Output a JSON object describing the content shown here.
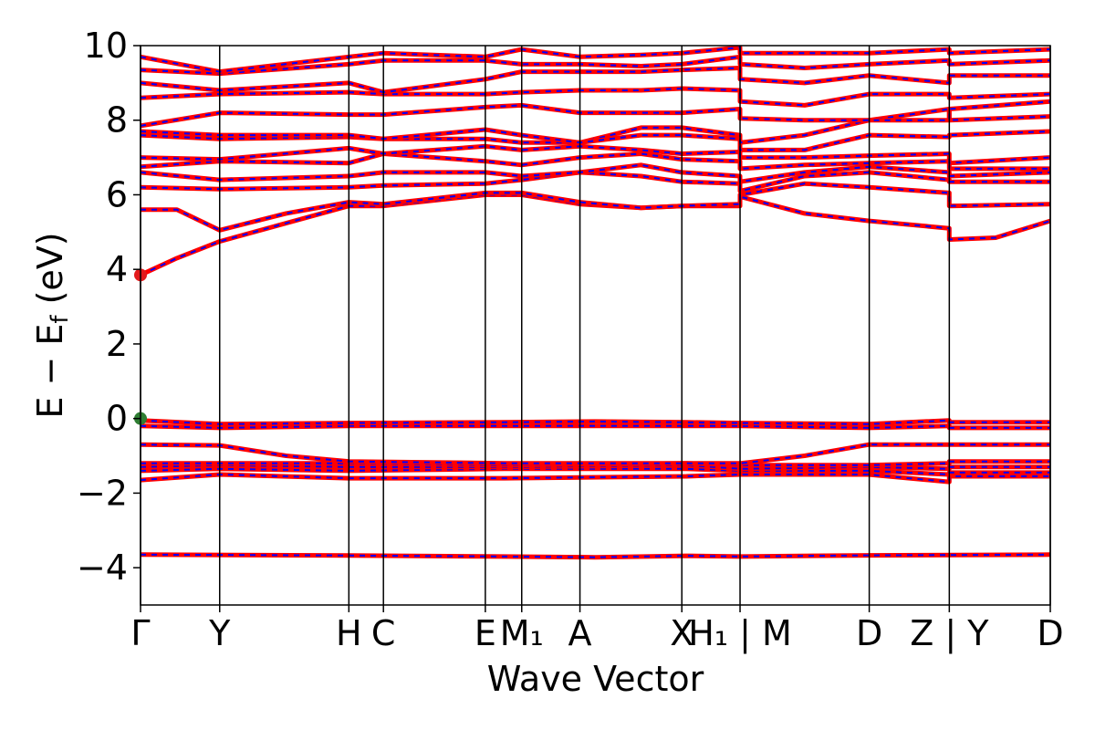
{
  "chart_data": {
    "type": "line",
    "xlabel": "Wave Vector",
    "ylabel": "E − E_f (eV)",
    "ylabel_main": "E − E",
    "ylabel_sub": "f",
    "ylabel_unit": " (eV)",
    "ylim": [
      -5,
      10
    ],
    "yticks": [
      -4,
      -2,
      0,
      2,
      4,
      6,
      8,
      10
    ],
    "ytick_labels": [
      "−4",
      "−2",
      "0",
      "2",
      "4",
      "6",
      "8",
      "10"
    ],
    "xlim": [
      0,
      1
    ],
    "kpoints": [
      {
        "x": 0.0,
        "label": "Γ"
      },
      {
        "x": 0.087,
        "label": "Y"
      },
      {
        "x": 0.229,
        "label": "H"
      },
      {
        "x": 0.267,
        "label": "C"
      },
      {
        "x": 0.379,
        "label": "E"
      },
      {
        "x": 0.419,
        "label": "M₁"
      },
      {
        "x": 0.483,
        "label": "A"
      },
      {
        "x": 0.595,
        "label": "X"
      },
      {
        "x": 0.659,
        "label": "H₁ | M"
      },
      {
        "x": 0.801,
        "label": "D"
      },
      {
        "x": 0.889,
        "label": "Z | Y"
      },
      {
        "x": 1.0,
        "label": "D"
      }
    ],
    "series": [
      {
        "values": [
          [
            0,
            -3.65
          ],
          [
            0.2,
            -3.67
          ],
          [
            0.4,
            -3.7
          ],
          [
            0.5,
            -3.72
          ],
          [
            0.6,
            -3.68
          ],
          [
            0.66,
            -3.7
          ],
          [
            0.8,
            -3.67
          ],
          [
            1,
            -3.65
          ]
        ]
      },
      {
        "values": [
          [
            0,
            -1.65
          ],
          [
            0.087,
            -1.5
          ],
          [
            0.229,
            -1.6
          ],
          [
            0.4,
            -1.6
          ],
          [
            0.6,
            -1.55
          ],
          [
            0.66,
            -1.5
          ],
          [
            0.8,
            -1.5
          ],
          [
            0.889,
            -1.7
          ],
          [
            0.889,
            -1.55
          ],
          [
            1,
            -1.55
          ]
        ]
      },
      {
        "values": [
          [
            0,
            -1.4
          ],
          [
            0.087,
            -1.35
          ],
          [
            0.229,
            -1.4
          ],
          [
            0.4,
            -1.35
          ],
          [
            0.6,
            -1.35
          ],
          [
            0.66,
            -1.4
          ],
          [
            0.8,
            -1.4
          ],
          [
            0.889,
            -1.5
          ],
          [
            0.889,
            -1.45
          ],
          [
            1,
            -1.45
          ]
        ]
      },
      {
        "values": [
          [
            0,
            -1.3
          ],
          [
            0.087,
            -1.25
          ],
          [
            0.229,
            -1.3
          ],
          [
            0.4,
            -1.3
          ],
          [
            0.6,
            -1.25
          ],
          [
            0.66,
            -1.35
          ],
          [
            0.8,
            -1.3
          ],
          [
            0.889,
            -1.35
          ],
          [
            0.889,
            -1.3
          ],
          [
            1,
            -1.3
          ]
        ]
      },
      {
        "values": [
          [
            0,
            -1.2
          ],
          [
            0.087,
            -1.2
          ],
          [
            0.229,
            -1.2
          ],
          [
            0.4,
            -1.25
          ],
          [
            0.6,
            -1.2
          ],
          [
            0.66,
            -1.25
          ],
          [
            0.8,
            -1.25
          ],
          [
            0.889,
            -1.2
          ],
          [
            0.889,
            -1.15
          ],
          [
            1,
            -1.15
          ]
        ]
      },
      {
        "values": [
          [
            0,
            -0.7
          ],
          [
            0.087,
            -0.72
          ],
          [
            0.16,
            -1.0
          ],
          [
            0.229,
            -1.15
          ],
          [
            0.4,
            -1.2
          ],
          [
            0.6,
            -1.2
          ],
          [
            0.66,
            -1.2
          ],
          [
            0.73,
            -1.0
          ],
          [
            0.8,
            -0.7
          ],
          [
            1,
            -0.7
          ]
        ]
      },
      {
        "values": [
          [
            0,
            -0.2
          ],
          [
            0.087,
            -0.25
          ],
          [
            0.229,
            -0.2
          ],
          [
            0.4,
            -0.2
          ],
          [
            0.6,
            -0.2
          ],
          [
            0.66,
            -0.2
          ],
          [
            0.8,
            -0.25
          ],
          [
            0.889,
            -0.2
          ],
          [
            0.889,
            -0.25
          ],
          [
            1,
            -0.25
          ]
        ]
      },
      {
        "values": [
          [
            0,
            -0.05
          ],
          [
            0.087,
            -0.15
          ],
          [
            0.229,
            -0.12
          ],
          [
            0.4,
            -0.1
          ],
          [
            0.5,
            -0.08
          ],
          [
            0.6,
            -0.1
          ],
          [
            0.66,
            -0.12
          ],
          [
            0.8,
            -0.15
          ],
          [
            0.889,
            -0.05
          ],
          [
            0.889,
            -0.1
          ],
          [
            1,
            -0.1
          ]
        ]
      },
      {
        "values": [
          [
            0,
            3.85
          ],
          [
            0.04,
            4.3
          ],
          [
            0.087,
            4.75
          ],
          [
            0.229,
            5.7
          ],
          [
            0.267,
            5.7
          ],
          [
            0.379,
            6.0
          ],
          [
            0.419,
            6.0
          ],
          [
            0.483,
            5.75
          ],
          [
            0.55,
            5.65
          ],
          [
            0.595,
            5.7
          ],
          [
            0.659,
            5.7
          ],
          [
            0.659,
            5.95
          ],
          [
            0.73,
            5.5
          ],
          [
            0.801,
            5.3
          ],
          [
            0.889,
            5.1
          ],
          [
            0.889,
            4.8
          ],
          [
            0.94,
            4.85
          ],
          [
            1,
            5.3
          ]
        ]
      },
      {
        "values": [
          [
            0,
            5.6
          ],
          [
            0.04,
            5.6
          ],
          [
            0.087,
            5.05
          ],
          [
            0.16,
            5.5
          ],
          [
            0.229,
            5.8
          ],
          [
            0.267,
            5.75
          ],
          [
            0.379,
            6.05
          ],
          [
            0.419,
            6.05
          ],
          [
            0.483,
            5.8
          ],
          [
            0.55,
            5.65
          ],
          [
            0.595,
            5.7
          ],
          [
            0.659,
            5.75
          ],
          [
            0.659,
            6.0
          ],
          [
            0.73,
            6.3
          ],
          [
            0.801,
            6.2
          ],
          [
            0.889,
            6.05
          ],
          [
            0.889,
            5.7
          ],
          [
            1,
            5.75
          ]
        ]
      },
      {
        "values": [
          [
            0,
            6.2
          ],
          [
            0.087,
            6.15
          ],
          [
            0.229,
            6.2
          ],
          [
            0.267,
            6.25
          ],
          [
            0.379,
            6.3
          ],
          [
            0.419,
            6.4
          ],
          [
            0.483,
            6.6
          ],
          [
            0.55,
            6.5
          ],
          [
            0.595,
            6.35
          ],
          [
            0.659,
            6.3
          ],
          [
            0.659,
            6.1
          ],
          [
            0.73,
            6.5
          ],
          [
            0.801,
            6.6
          ],
          [
            0.889,
            6.4
          ],
          [
            0.889,
            6.35
          ],
          [
            1,
            6.35
          ]
        ]
      },
      {
        "values": [
          [
            0,
            6.6
          ],
          [
            0.087,
            6.4
          ],
          [
            0.229,
            6.5
          ],
          [
            0.267,
            6.6
          ],
          [
            0.379,
            6.6
          ],
          [
            0.419,
            6.5
          ],
          [
            0.483,
            6.6
          ],
          [
            0.55,
            6.8
          ],
          [
            0.595,
            6.6
          ],
          [
            0.659,
            6.5
          ],
          [
            0.659,
            6.35
          ],
          [
            0.73,
            6.6
          ],
          [
            0.801,
            6.75
          ],
          [
            0.889,
            6.6
          ],
          [
            0.889,
            6.5
          ],
          [
            1,
            6.6
          ]
        ]
      },
      {
        "values": [
          [
            0,
            6.75
          ],
          [
            0.087,
            6.9
          ],
          [
            0.229,
            6.85
          ],
          [
            0.267,
            7.1
          ],
          [
            0.379,
            6.9
          ],
          [
            0.419,
            6.8
          ],
          [
            0.483,
            7.0
          ],
          [
            0.55,
            7.1
          ],
          [
            0.595,
            6.95
          ],
          [
            0.659,
            6.9
          ],
          [
            0.659,
            6.7
          ],
          [
            0.73,
            6.8
          ],
          [
            0.801,
            6.85
          ],
          [
            0.889,
            6.9
          ],
          [
            0.889,
            6.7
          ],
          [
            1,
            6.7
          ]
        ]
      },
      {
        "values": [
          [
            0,
            7.0
          ],
          [
            0.087,
            6.95
          ],
          [
            0.229,
            7.25
          ],
          [
            0.267,
            7.1
          ],
          [
            0.379,
            7.3
          ],
          [
            0.419,
            7.2
          ],
          [
            0.483,
            7.3
          ],
          [
            0.55,
            7.2
          ],
          [
            0.595,
            7.1
          ],
          [
            0.659,
            7.15
          ],
          [
            0.659,
            7.0
          ],
          [
            0.73,
            7.0
          ],
          [
            0.801,
            7.05
          ],
          [
            0.889,
            7.1
          ],
          [
            0.889,
            6.85
          ],
          [
            1,
            7.0
          ]
        ]
      },
      {
        "values": [
          [
            0,
            7.6
          ],
          [
            0.087,
            7.5
          ],
          [
            0.229,
            7.55
          ],
          [
            0.267,
            7.5
          ],
          [
            0.379,
            7.5
          ],
          [
            0.419,
            7.4
          ],
          [
            0.483,
            7.4
          ],
          [
            0.55,
            7.8
          ],
          [
            0.595,
            7.8
          ],
          [
            0.659,
            7.6
          ],
          [
            0.659,
            7.2
          ],
          [
            0.73,
            7.2
          ],
          [
            0.801,
            7.6
          ],
          [
            0.889,
            7.55
          ],
          [
            0.889,
            7.6
          ],
          [
            1,
            7.7
          ]
        ]
      },
      {
        "values": [
          [
            0,
            7.7
          ],
          [
            0.087,
            7.6
          ],
          [
            0.229,
            7.6
          ],
          [
            0.267,
            7.5
          ],
          [
            0.379,
            7.75
          ],
          [
            0.419,
            7.6
          ],
          [
            0.483,
            7.4
          ],
          [
            0.55,
            7.6
          ],
          [
            0.595,
            7.6
          ],
          [
            0.659,
            7.5
          ],
          [
            0.659,
            7.4
          ],
          [
            0.73,
            7.6
          ],
          [
            0.801,
            8.0
          ],
          [
            0.889,
            8.3
          ],
          [
            0.889,
            8.0
          ],
          [
            1,
            8.1
          ]
        ]
      },
      {
        "values": [
          [
            0,
            7.85
          ],
          [
            0.087,
            8.2
          ],
          [
            0.229,
            8.15
          ],
          [
            0.267,
            8.15
          ],
          [
            0.379,
            8.35
          ],
          [
            0.419,
            8.4
          ],
          [
            0.483,
            8.2
          ],
          [
            0.55,
            8.2
          ],
          [
            0.595,
            8.2
          ],
          [
            0.659,
            8.3
          ],
          [
            0.659,
            8.05
          ],
          [
            0.73,
            8.0
          ],
          [
            0.801,
            8.0
          ],
          [
            0.889,
            8.0
          ],
          [
            0.889,
            8.3
          ],
          [
            1,
            8.5
          ]
        ]
      },
      {
        "values": [
          [
            0,
            8.6
          ],
          [
            0.087,
            8.7
          ],
          [
            0.229,
            8.75
          ],
          [
            0.267,
            8.7
          ],
          [
            0.379,
            8.7
          ],
          [
            0.419,
            8.75
          ],
          [
            0.483,
            8.8
          ],
          [
            0.55,
            8.8
          ],
          [
            0.595,
            8.85
          ],
          [
            0.659,
            8.8
          ],
          [
            0.659,
            8.5
          ],
          [
            0.73,
            8.4
          ],
          [
            0.801,
            8.7
          ],
          [
            0.889,
            8.7
          ],
          [
            0.889,
            8.6
          ],
          [
            1,
            8.7
          ]
        ]
      },
      {
        "values": [
          [
            0,
            9.0
          ],
          [
            0.087,
            8.8
          ],
          [
            0.229,
            9.0
          ],
          [
            0.267,
            8.75
          ],
          [
            0.379,
            9.1
          ],
          [
            0.419,
            9.3
          ],
          [
            0.483,
            9.3
          ],
          [
            0.55,
            9.3
          ],
          [
            0.595,
            9.35
          ],
          [
            0.659,
            9.4
          ],
          [
            0.659,
            9.1
          ],
          [
            0.73,
            9.0
          ],
          [
            0.801,
            9.2
          ],
          [
            0.889,
            9.0
          ],
          [
            0.889,
            9.2
          ],
          [
            1,
            9.2
          ]
        ]
      },
      {
        "values": [
          [
            0,
            9.35
          ],
          [
            0.087,
            9.25
          ],
          [
            0.229,
            9.5
          ],
          [
            0.267,
            9.6
          ],
          [
            0.379,
            9.6
          ],
          [
            0.419,
            9.5
          ],
          [
            0.483,
            9.5
          ],
          [
            0.55,
            9.45
          ],
          [
            0.595,
            9.5
          ],
          [
            0.659,
            9.7
          ],
          [
            0.659,
            9.5
          ],
          [
            0.73,
            9.4
          ],
          [
            0.801,
            9.5
          ],
          [
            0.889,
            9.6
          ],
          [
            0.889,
            9.5
          ],
          [
            1,
            9.6
          ]
        ]
      },
      {
        "values": [
          [
            0,
            9.7
          ],
          [
            0.087,
            9.3
          ],
          [
            0.229,
            9.7
          ],
          [
            0.267,
            9.8
          ],
          [
            0.379,
            9.7
          ],
          [
            0.419,
            9.9
          ],
          [
            0.483,
            9.7
          ],
          [
            0.55,
            9.75
          ],
          [
            0.595,
            9.8
          ],
          [
            0.659,
            9.95
          ],
          [
            0.659,
            9.8
          ],
          [
            0.73,
            9.8
          ],
          [
            0.801,
            9.8
          ],
          [
            0.889,
            9.9
          ],
          [
            0.889,
            9.8
          ],
          [
            1,
            9.9
          ]
        ]
      }
    ],
    "markers": [
      {
        "x": 0,
        "y": 3.85,
        "color": "#e31a1c"
      },
      {
        "x": 0,
        "y": 0.0,
        "color": "#2e7d32"
      }
    ],
    "grid": false,
    "line_colors": {
      "outer": "#ff0000",
      "inner": "#0000ff"
    }
  }
}
